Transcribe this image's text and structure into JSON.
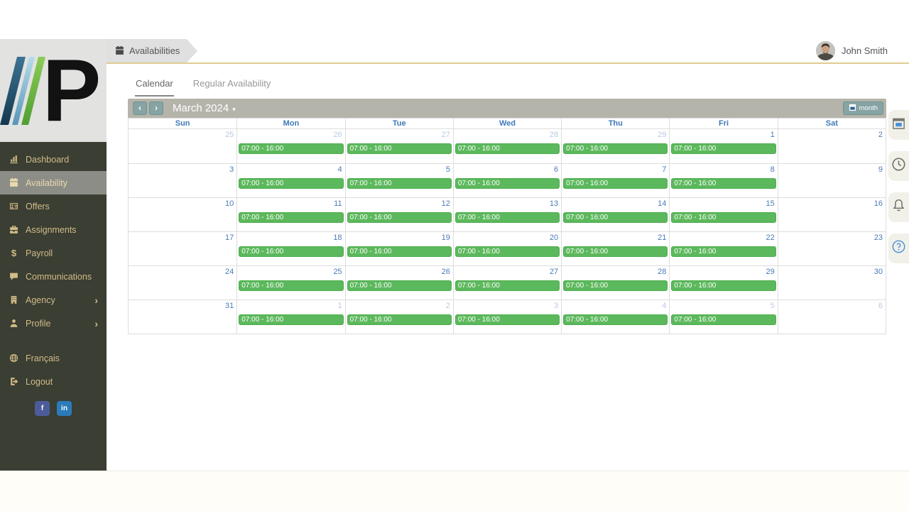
{
  "app": {
    "user_name": "John Smith"
  },
  "logo": {
    "letter": "P"
  },
  "breadcrumb": {
    "label": "Availabilities",
    "icon": "calendar-icon"
  },
  "sidebar": {
    "items": [
      {
        "label": "Dashboard",
        "icon": "chart-bar-icon",
        "active": false,
        "chevron": false
      },
      {
        "label": "Availability",
        "icon": "calendar-icon",
        "active": true,
        "chevron": false
      },
      {
        "label": "Offers",
        "icon": "id-card-icon",
        "active": false,
        "chevron": false
      },
      {
        "label": "Assignments",
        "icon": "briefcase-icon",
        "active": false,
        "chevron": false
      },
      {
        "label": "Payroll",
        "icon": "dollar-icon",
        "active": false,
        "chevron": false
      },
      {
        "label": "Communications",
        "icon": "comment-icon",
        "active": false,
        "chevron": false
      },
      {
        "label": "Agency",
        "icon": "building-icon",
        "active": false,
        "chevron": true
      },
      {
        "label": "Profile",
        "icon": "user-icon",
        "active": false,
        "chevron": true
      }
    ],
    "footer_items": [
      {
        "label": "Français",
        "icon": "globe-icon"
      },
      {
        "label": "Logout",
        "icon": "logout-icon"
      }
    ],
    "social": [
      {
        "name": "facebook",
        "glyph": "f",
        "color": "#4c5c9b"
      },
      {
        "name": "linkedin",
        "glyph": "in",
        "color": "#2b7bb9"
      }
    ]
  },
  "tabs": [
    {
      "label": "Calendar",
      "active": true
    },
    {
      "label": "Regular Availability",
      "active": false
    }
  ],
  "calendar": {
    "title": "March 2024",
    "view_button": "month",
    "day_headers": [
      "Sun",
      "Mon",
      "Tue",
      "Wed",
      "Thu",
      "Fri",
      "Sat"
    ],
    "event_label": "07:00 - 16:00",
    "weeks": [
      {
        "days": [
          {
            "num": "25",
            "muted": true,
            "event": false
          },
          {
            "num": "26",
            "muted": true,
            "event": true
          },
          {
            "num": "27",
            "muted": true,
            "event": true
          },
          {
            "num": "28",
            "muted": true,
            "event": true
          },
          {
            "num": "29",
            "muted": true,
            "event": true
          },
          {
            "num": "1",
            "muted": false,
            "event": true
          },
          {
            "num": "2",
            "muted": false,
            "event": false
          }
        ]
      },
      {
        "days": [
          {
            "num": "3",
            "muted": false,
            "event": false
          },
          {
            "num": "4",
            "muted": false,
            "event": true
          },
          {
            "num": "5",
            "muted": false,
            "event": true
          },
          {
            "num": "6",
            "muted": false,
            "event": true
          },
          {
            "num": "7",
            "muted": false,
            "event": true
          },
          {
            "num": "8",
            "muted": false,
            "event": true
          },
          {
            "num": "9",
            "muted": false,
            "event": false
          }
        ]
      },
      {
        "days": [
          {
            "num": "10",
            "muted": false,
            "event": false
          },
          {
            "num": "11",
            "muted": false,
            "event": true
          },
          {
            "num": "12",
            "muted": false,
            "event": true
          },
          {
            "num": "13",
            "muted": false,
            "event": true
          },
          {
            "num": "14",
            "muted": false,
            "event": true
          },
          {
            "num": "15",
            "muted": false,
            "event": true
          },
          {
            "num": "16",
            "muted": false,
            "event": false
          }
        ]
      },
      {
        "days": [
          {
            "num": "17",
            "muted": false,
            "event": false
          },
          {
            "num": "18",
            "muted": false,
            "event": true
          },
          {
            "num": "19",
            "muted": false,
            "event": true
          },
          {
            "num": "20",
            "muted": false,
            "event": true
          },
          {
            "num": "21",
            "muted": false,
            "event": true
          },
          {
            "num": "22",
            "muted": false,
            "event": true
          },
          {
            "num": "23",
            "muted": false,
            "event": false
          }
        ]
      },
      {
        "days": [
          {
            "num": "24",
            "muted": false,
            "event": false
          },
          {
            "num": "25",
            "muted": false,
            "event": true
          },
          {
            "num": "26",
            "muted": false,
            "event": true
          },
          {
            "num": "27",
            "muted": false,
            "event": true
          },
          {
            "num": "28",
            "muted": false,
            "event": true
          },
          {
            "num": "29",
            "muted": false,
            "event": true
          },
          {
            "num": "30",
            "muted": false,
            "event": false
          }
        ]
      },
      {
        "days": [
          {
            "num": "31",
            "muted": false,
            "event": false
          },
          {
            "num": "1",
            "muted": true,
            "event": true
          },
          {
            "num": "2",
            "muted": true,
            "event": true
          },
          {
            "num": "3",
            "muted": true,
            "event": true
          },
          {
            "num": "4",
            "muted": true,
            "event": true
          },
          {
            "num": "5",
            "muted": true,
            "event": true
          },
          {
            "num": "6",
            "muted": true,
            "event": false
          }
        ]
      }
    ]
  },
  "right_rail": [
    {
      "icon": "rail-calendar-icon"
    },
    {
      "icon": "clock-icon"
    },
    {
      "icon": "bell-icon"
    },
    {
      "icon": "question-icon"
    }
  ],
  "colors": {
    "sidebar_bg": "#3a3e33",
    "sidebar_text": "#d2bb88",
    "sidebar_active_bg": "#8d8d87",
    "logo_box_bg": "#e2e2e1",
    "topbar_border": "#e0cc90",
    "breadcrumb_bg": "#e0e0e0",
    "calendar_header_bg": "#b5b4aa",
    "calendar_button_bg": "#87a3a3",
    "event_bg": "#5cb85c",
    "event_border": "#4cae4c",
    "day_number_blue": "#4a7ab8",
    "day_number_muted": "#b9c9e4",
    "day_header_blue": "#3e79b8",
    "rail_button_bg": "#f1f1e9"
  }
}
